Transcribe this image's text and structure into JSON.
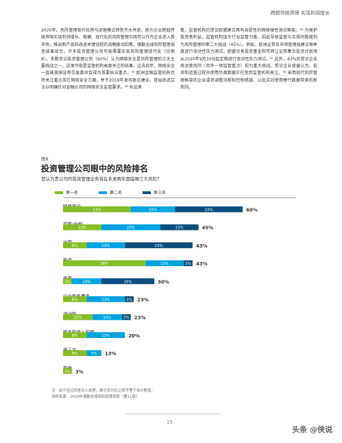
{
  "header": {
    "title": "跨越传统界限 实现利润增长"
  },
  "body_left": "2020年。风险管理现代化将与运营模式转型齐头并进，助力企业跨越传统界限实现利润增长。稳健、现代化的风险管理实践可以作为企业进入新市场、推出新产品和改进关键流程的战略推动因素。德勤全球风险管理调查结果显示，许多投资管理公司可能需要实现风险管理现代化（见图8）。多数受访投资管理公司（60%）认为网络安全是风险管理的三大主要挑战之一。这很可能是监管机构高度关注的结果。过去四年，网络安全一直被美国证券交易委员会视为首要执法重点。³⁸ 欧洲金融监管机构也将关注重点放在网络安全方面，并于2019年发布联合建议，提出改进立法以明确针对金融公司的网络安全监管要求。³⁹ 长远来",
  "body_right": "看，监管机构已提议欧盟建立具有自愿性的网络弹性测试框架。⁴⁰ 为保护投资者利益，监管机构加大行业监管力度，因此导致监管与合规问题被列为风险管理的第二大挑战（45%）。例如，欧洲证券及市场管理局建议每季度进行流动性压力测试。欧盟另类投资基金和可转让证券集合投资计划须从2020年9月30日起定期进行流动性压力测试。⁴¹ 此外，43%的受访企业将运营风险（另外一项监管重点）视为重大挑战。受访企业普遍认为，投资和运营过程中使用另类数据正在受到监管机构关注。⁴² 采用现代风险管理框架的企业或将调整流程和控制措施，以此应对使用替代数据带来的新风险。",
  "figure": {
    "number": "图8",
    "title": "投资管理公司眼中的风险排名",
    "subtitle": "您认为贵公司的投资管理业务将在未来两年面临哪三大风险？"
  },
  "colors": {
    "first": "#86bc25",
    "second": "#00a3e0",
    "third": "#0d4f7c"
  },
  "chart_data": {
    "type": "bar",
    "orientation": "horizontal-stacked",
    "categories": [
      "网络安全",
      "监管/合规",
      "运营",
      "投资",
      "声誉",
      "企业危机事件",
      "流动性",
      "成本和收入回报",
      "第三方",
      "其他"
    ],
    "series": [
      {
        "name": "第一名",
        "values": [
          23,
          13,
          8,
          28,
          3,
          8,
          10,
          8,
          8,
          3
        ]
      },
      {
        "name": "第二名",
        "values": [
          15,
          20,
          13,
          13,
          10,
          13,
          10,
          13,
          5,
          0
        ]
      },
      {
        "name": "第三名",
        "values": [
          23,
          13,
          23,
          3,
          18,
          3,
          3,
          0,
          0,
          0
        ]
      }
    ],
    "totals": [
      "60%",
      "45%",
      "43%",
      "43%",
      "30%",
      "23%",
      "23%",
      "20%",
      "13%",
      "3%"
    ],
    "bar_labels": [
      [
        "23%",
        "15%",
        "23%"
      ],
      [
        "13%",
        "20%",
        "13%"
      ],
      [
        "8%",
        "13%",
        "23%"
      ],
      [
        "28%",
        "13%",
        "3%"
      ],
      [
        "3%",
        "10%",
        "18%"
      ],
      [
        "8%",
        "13%",
        "3%"
      ],
      [
        "10%",
        "10%",
        "3%"
      ],
      [
        "8%",
        "13%",
        ""
      ],
      [
        "8%",
        "5%",
        ""
      ],
      [
        "3%",
        "",
        ""
      ]
    ],
    "xlim": [
      0,
      62
    ]
  },
  "notes": {
    "line1": "注：由于经过四舍五入处理，部分百分比之和不等于合计数值。",
    "line2": "资料来源：2019年德勤全球风险管理调查（第11版）"
  },
  "footer": {
    "page_number": "15",
    "watermark": "头条 @侠说"
  }
}
